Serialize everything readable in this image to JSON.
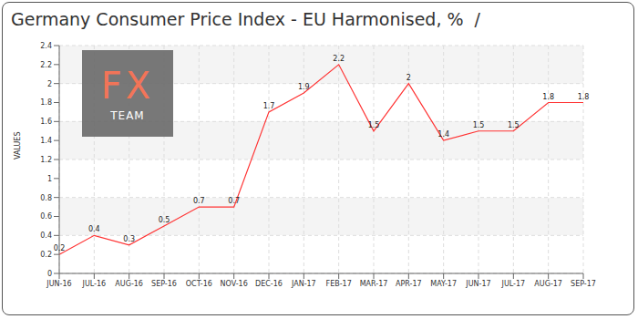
{
  "chart_data": {
    "type": "line",
    "title": "Germany Consumer Price Index - EU Harmonised, %  /",
    "y_label": "VALUES",
    "annotations": [
      "FX",
      "TEAM"
    ],
    "categories": [
      "JUN-16",
      "JUL-16",
      "AUG-16",
      "SEP-16",
      "OCT-16",
      "NOV-16",
      "DEC-16",
      "JAN-17",
      "FEB-17",
      "MAR-17",
      "APR-17",
      "MAY-17",
      "JUN-17",
      "JUL-17",
      "AUG-17",
      "SEP-17"
    ],
    "values": [
      0.2,
      0.4,
      0.3,
      0.5,
      0.7,
      0.7,
      1.7,
      1.9,
      2.2,
      1.5,
      2,
      1.4,
      1.5,
      1.5,
      1.8,
      1.8
    ],
    "color": "#ff3333",
    "ylim": [
      0,
      2.4
    ],
    "yticks": [
      0,
      0.2,
      0.4,
      0.6,
      0.8,
      1,
      1.2,
      1.4,
      1.6,
      1.8,
      2,
      2.2,
      2.4
    ],
    "grid": true,
    "data_labels": true,
    "marker": "none"
  }
}
